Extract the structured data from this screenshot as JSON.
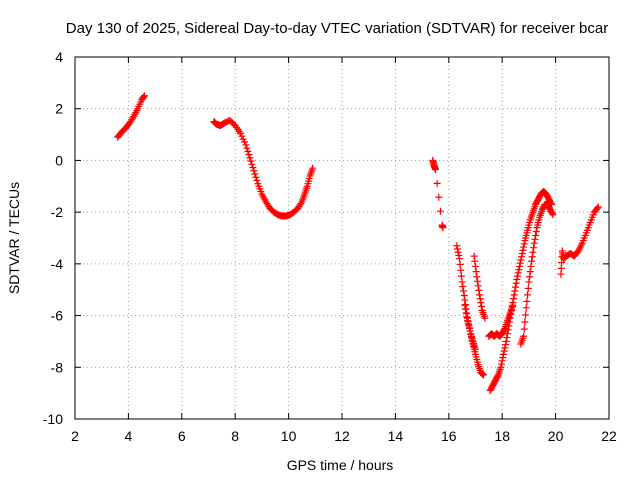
{
  "chart_data": {
    "type": "scatter",
    "title": "Day 130 of 2025, Sidereal Day-to-day VTEC variation (SDTVAR) for receiver bcar",
    "xlabel": "GPS time / hours",
    "ylabel": "SDTVAR / TECUs",
    "xlim": [
      2,
      22
    ],
    "ylim": [
      -10,
      4
    ],
    "xticks": [
      "2",
      "4",
      "6",
      "8",
      "10",
      "12",
      "14",
      "16",
      "18",
      "20",
      "22"
    ],
    "yticks": [
      "4",
      "2",
      "0",
      "-2",
      "-4",
      "-6",
      "-8",
      "-10"
    ],
    "grid": true,
    "marker": "plus",
    "color": "#ff0000",
    "series": [
      {
        "name": "seg1",
        "x": [
          3.6,
          3.75,
          3.9,
          4.05,
          4.2,
          4.35,
          4.5,
          4.6
        ],
        "y": [
          0.9,
          1.1,
          1.25,
          1.45,
          1.7,
          2.0,
          2.35,
          2.5
        ]
      },
      {
        "name": "seg2",
        "x": [
          7.2,
          7.3,
          7.45,
          7.6,
          7.8,
          8.0,
          8.2,
          8.4,
          8.55,
          8.7,
          8.85,
          9.0,
          9.15,
          9.3,
          9.45,
          9.6,
          9.75,
          9.9,
          10.05,
          10.2,
          10.35,
          10.5,
          10.6,
          10.7,
          10.8,
          10.9
        ],
        "y": [
          1.5,
          1.4,
          1.35,
          1.45,
          1.55,
          1.35,
          1.05,
          0.6,
          0.1,
          -0.4,
          -0.9,
          -1.3,
          -1.6,
          -1.85,
          -2.0,
          -2.1,
          -2.15,
          -2.15,
          -2.1,
          -2.0,
          -1.85,
          -1.6,
          -1.3,
          -1.0,
          -0.6,
          -0.3
        ]
      },
      {
        "name": "seg3",
        "x": [
          15.4,
          15.45,
          15.5,
          15.75,
          15.78
        ],
        "y": [
          0.0,
          -0.2,
          -0.35,
          -2.5,
          -2.6
        ]
      },
      {
        "name": "seg4",
        "x": [
          16.3,
          16.4,
          16.5,
          16.6,
          16.7,
          16.8,
          16.9,
          17.0,
          17.1,
          17.2,
          17.3
        ],
        "y": [
          -3.3,
          -3.8,
          -4.7,
          -5.4,
          -6.1,
          -6.6,
          -7.1,
          -7.5,
          -7.9,
          -8.2,
          -8.3
        ]
      },
      {
        "name": "seg5",
        "x": [
          16.6,
          16.7,
          16.8,
          16.9,
          17.0
        ],
        "y": [
          -5.6,
          -6.2,
          -6.6,
          -7.0,
          -7.3
        ]
      },
      {
        "name": "seg6",
        "x": [
          16.95,
          17.05,
          17.15,
          17.25,
          17.35
        ],
        "y": [
          -3.7,
          -4.5,
          -5.2,
          -5.8,
          -6.1
        ]
      },
      {
        "name": "seg7",
        "x": [
          17.5,
          17.6,
          17.7,
          17.8,
          17.9,
          18.0,
          18.1,
          18.2,
          18.3,
          18.4
        ],
        "y": [
          -6.8,
          -6.7,
          -6.8,
          -6.7,
          -6.8,
          -6.7,
          -6.5,
          -6.2,
          -5.9,
          -5.6
        ]
      },
      {
        "name": "seg8",
        "x": [
          17.55,
          17.65,
          17.75,
          17.85,
          17.95,
          18.05,
          18.15,
          18.25,
          18.35,
          18.45,
          18.55,
          18.65,
          18.75,
          18.85,
          18.95,
          19.05,
          19.15,
          19.25,
          19.35,
          19.45,
          19.55,
          19.65,
          19.75,
          19.85
        ],
        "y": [
          -8.9,
          -8.7,
          -8.5,
          -8.3,
          -8.0,
          -7.5,
          -7.0,
          -6.4,
          -5.8,
          -5.2,
          -4.6,
          -4.1,
          -3.6,
          -3.1,
          -2.7,
          -2.3,
          -2.0,
          -1.7,
          -1.5,
          -1.3,
          -1.2,
          -1.3,
          -1.5,
          -1.7
        ]
      },
      {
        "name": "seg9",
        "x": [
          18.7,
          18.8,
          18.9,
          19.0,
          19.1,
          19.2,
          19.3,
          19.4,
          19.5,
          19.6,
          19.7,
          19.8,
          19.9
        ],
        "y": [
          -7.1,
          -6.8,
          -5.7,
          -4.7,
          -3.9,
          -3.2,
          -2.6,
          -2.2,
          -1.9,
          -1.7,
          -1.7,
          -1.9,
          -2.1
        ]
      },
      {
        "name": "seg10",
        "x": [
          20.2,
          20.25,
          20.3,
          20.4,
          20.55,
          20.7,
          20.85,
          21.0,
          21.15,
          21.3,
          21.45,
          21.6
        ],
        "y": [
          -4.4,
          -3.5,
          -3.8,
          -3.7,
          -3.6,
          -3.7,
          -3.5,
          -3.2,
          -2.8,
          -2.4,
          -2.0,
          -1.8
        ]
      }
    ]
  }
}
